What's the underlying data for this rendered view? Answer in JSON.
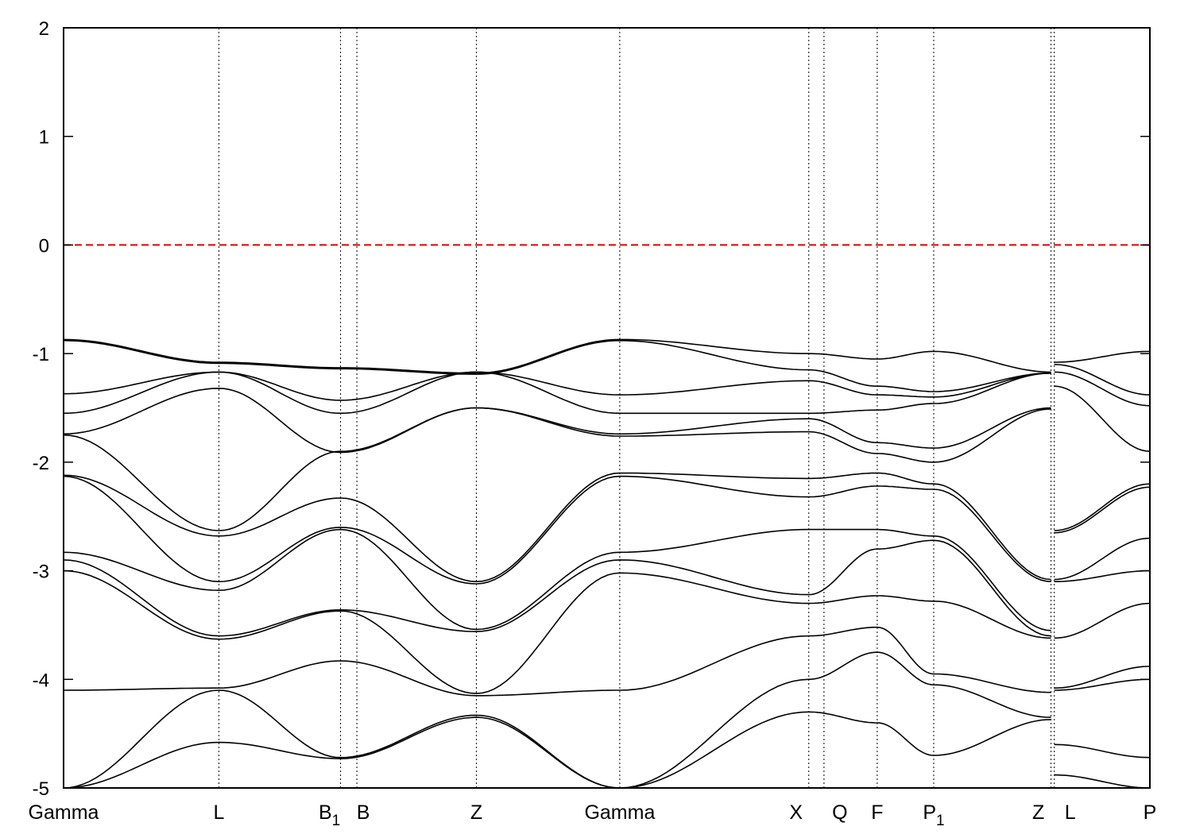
{
  "chart_data": {
    "type": "line",
    "title": "",
    "xlabel": "",
    "ylabel": "",
    "ylim": [
      -5,
      2
    ],
    "y_ticks": [
      "2",
      "1",
      "0",
      "-1",
      "-2",
      "-3",
      "-4",
      "-5"
    ],
    "x_ticks": [
      {
        "label": "Gamma",
        "x": 0.0
      },
      {
        "label": "L",
        "x": 0.143
      },
      {
        "label": "B1",
        "base": "B",
        "sub": "1",
        "x": 0.255
      },
      {
        "label": "B",
        "x": 0.27
      },
      {
        "label": "Z",
        "x": 0.38
      },
      {
        "label": "Gamma",
        "x": 0.512
      },
      {
        "label": "X",
        "x": 0.686
      },
      {
        "label": "Q",
        "x": 0.7
      },
      {
        "label": "F",
        "x": 0.749
      },
      {
        "label": "P1",
        "base": "P",
        "sub": "1",
        "x": 0.801
      },
      {
        "label": "Z",
        "x": 0.909
      },
      {
        "label": "L",
        "x": 0.912
      },
      {
        "label": "P",
        "x": 1.0
      }
    ],
    "fermi_level": {
      "y": 0,
      "color": "#e00000"
    },
    "colors": {
      "bands": "#000000",
      "fermi": "#e00000",
      "grid": "#000000"
    },
    "band_x": [
      0.0,
      0.143,
      0.255,
      0.38,
      0.512,
      0.686,
      0.749,
      0.801,
      0.909
    ],
    "series": [
      {
        "values": [
          -0.87,
          -1.08,
          -1.13,
          -1.18,
          -0.87,
          -1.0,
          -1.05,
          -0.98,
          -1.17
        ]
      },
      {
        "values": [
          -0.88,
          -1.09,
          -1.14,
          -1.19,
          -0.88,
          -1.15,
          -1.3,
          -1.35,
          -1.18
        ]
      },
      {
        "values": [
          -1.37,
          -1.17,
          -1.43,
          -1.17,
          -1.38,
          -1.25,
          -1.38,
          -1.4,
          -1.18
        ]
      },
      {
        "values": [
          -1.55,
          -1.17,
          -1.55,
          -1.17,
          -1.55,
          -1.55,
          -1.52,
          -1.46,
          -1.18
        ]
      },
      {
        "values": [
          -1.74,
          -1.32,
          -1.91,
          -1.5,
          -1.74,
          -1.6,
          -1.82,
          -1.87,
          -1.5
        ]
      },
      {
        "values": [
          -1.75,
          -2.63,
          -1.9,
          -1.5,
          -1.76,
          -1.72,
          -1.92,
          -2.0,
          -1.51
        ]
      },
      {
        "values": [
          -2.12,
          -2.68,
          -2.33,
          -3.1,
          -2.1,
          -2.15,
          -2.1,
          -2.2,
          -3.08
        ]
      },
      {
        "values": [
          -2.13,
          -3.1,
          -2.6,
          -3.12,
          -2.13,
          -2.32,
          -2.22,
          -2.25,
          -3.1
        ]
      },
      {
        "values": [
          -2.83,
          -3.18,
          -2.62,
          -3.54,
          -2.83,
          -2.62,
          -2.62,
          -2.68,
          -3.55
        ]
      },
      {
        "values": [
          -2.9,
          -3.6,
          -3.36,
          -3.56,
          -2.9,
          -3.22,
          -2.8,
          -2.72,
          -3.6
        ]
      },
      {
        "values": [
          -3.0,
          -3.63,
          -3.37,
          -4.13,
          -3.02,
          -3.3,
          -3.23,
          -3.28,
          -3.62
        ]
      },
      {
        "values": [
          -4.1,
          -4.08,
          -3.83,
          -4.15,
          -4.1,
          -3.6,
          -3.52,
          -3.95,
          -4.12
        ]
      },
      {
        "values": [
          -5.0,
          -4.1,
          -4.72,
          -4.33,
          -5.0,
          -4.0,
          -3.75,
          -4.05,
          -4.35
        ]
      },
      {
        "values": [
          -5.0,
          -4.58,
          -4.73,
          -4.35,
          -5.0,
          -4.3,
          -4.4,
          -4.7,
          -4.37
        ]
      }
    ],
    "series_right": {
      "band_x": [
        0.912,
        1.0
      ],
      "values": [
        [
          -1.08,
          -0.98
        ],
        [
          -1.1,
          -1.38
        ],
        [
          -1.17,
          -1.48
        ],
        [
          -1.3,
          -1.9
        ],
        [
          -2.63,
          -2.2
        ],
        [
          -2.65,
          -2.23
        ],
        [
          -3.08,
          -2.7
        ],
        [
          -3.1,
          -3.0
        ],
        [
          -3.62,
          -3.3
        ],
        [
          -4.08,
          -3.88
        ],
        [
          -4.1,
          -4.0
        ],
        [
          -4.6,
          -4.72
        ],
        [
          -4.88,
          -5.0
        ]
      ]
    }
  }
}
